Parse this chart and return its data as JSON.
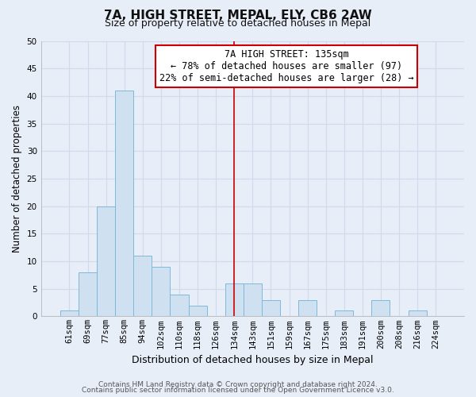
{
  "title": "7A, HIGH STREET, MEPAL, ELY, CB6 2AW",
  "subtitle": "Size of property relative to detached houses in Mepal",
  "xlabel": "Distribution of detached houses by size in Mepal",
  "ylabel": "Number of detached properties",
  "bar_labels": [
    "61sqm",
    "69sqm",
    "77sqm",
    "85sqm",
    "94sqm",
    "102sqm",
    "110sqm",
    "118sqm",
    "126sqm",
    "134sqm",
    "143sqm",
    "151sqm",
    "159sqm",
    "167sqm",
    "175sqm",
    "183sqm",
    "191sqm",
    "200sqm",
    "208sqm",
    "216sqm",
    "224sqm"
  ],
  "bar_heights": [
    1,
    8,
    20,
    41,
    11,
    9,
    4,
    2,
    0,
    6,
    6,
    3,
    0,
    3,
    0,
    1,
    0,
    3,
    0,
    1,
    0
  ],
  "bar_color": "#cfe0f0",
  "bar_edge_color": "#7fb8d8",
  "vline_x_idx": 9,
  "vline_color": "#cc0000",
  "annotation_title": "7A HIGH STREET: 135sqm",
  "annotation_line1": "← 78% of detached houses are smaller (97)",
  "annotation_line2": "22% of semi-detached houses are larger (28) →",
  "annotation_box_color": "#ffffff",
  "annotation_box_edge": "#cc0000",
  "ylim": [
    0,
    50
  ],
  "yticks": [
    0,
    5,
    10,
    15,
    20,
    25,
    30,
    35,
    40,
    45,
    50
  ],
  "footer_line1": "Contains HM Land Registry data © Crown copyright and database right 2024.",
  "footer_line2": "Contains public sector information licensed under the Open Government Licence v3.0.",
  "background_color": "#e8eef8",
  "grid_color": "#d0daea",
  "title_fontsize": 11,
  "subtitle_fontsize": 9,
  "xlabel_fontsize": 9,
  "ylabel_fontsize": 8.5,
  "tick_fontsize": 7.5,
  "annotation_fontsize": 8.5,
  "footer_fontsize": 6.5
}
